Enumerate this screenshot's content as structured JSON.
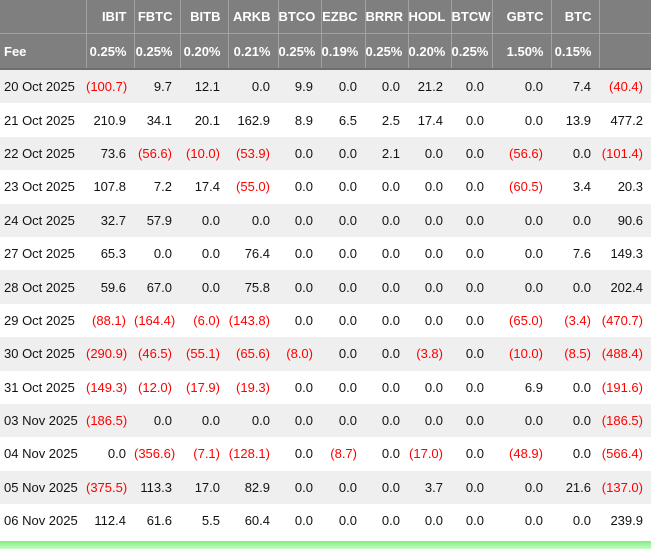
{
  "chart_data": {
    "type": "table",
    "description": "Bitcoin ETF daily flows table",
    "columns": [
      "",
      "IBIT",
      "FBTC",
      "BITB",
      "ARKB",
      "BTCO",
      "EZBC",
      "BRRR",
      "HODL",
      "BTCW",
      "GBTC",
      "BTC",
      ""
    ],
    "fee_row": {
      "label": "Fee",
      "values": [
        "0.25%",
        "0.25%",
        "0.20%",
        "0.21%",
        "0.25%",
        "0.19%",
        "0.25%",
        "0.20%",
        "0.25%",
        "1.50%",
        "0.15%",
        ""
      ]
    },
    "rows": [
      {
        "date": "20 Oct 2025",
        "values": [
          "(100.7)",
          "9.7",
          "12.1",
          "0.0",
          "9.9",
          "0.0",
          "0.0",
          "21.2",
          "0.0",
          "0.0",
          "7.4",
          "(40.4)"
        ]
      },
      {
        "date": "21 Oct 2025",
        "values": [
          "210.9",
          "34.1",
          "20.1",
          "162.9",
          "8.9",
          "6.5",
          "2.5",
          "17.4",
          "0.0",
          "0.0",
          "13.9",
          "477.2"
        ]
      },
      {
        "date": "22 Oct 2025",
        "values": [
          "73.6",
          "(56.6)",
          "(10.0)",
          "(53.9)",
          "0.0",
          "0.0",
          "2.1",
          "0.0",
          "0.0",
          "(56.6)",
          "0.0",
          "(101.4)"
        ]
      },
      {
        "date": "23 Oct 2025",
        "values": [
          "107.8",
          "7.2",
          "17.4",
          "(55.0)",
          "0.0",
          "0.0",
          "0.0",
          "0.0",
          "0.0",
          "(60.5)",
          "3.4",
          "20.3"
        ]
      },
      {
        "date": "24 Oct 2025",
        "values": [
          "32.7",
          "57.9",
          "0.0",
          "0.0",
          "0.0",
          "0.0",
          "0.0",
          "0.0",
          "0.0",
          "0.0",
          "0.0",
          "90.6"
        ]
      },
      {
        "date": "27 Oct 2025",
        "values": [
          "65.3",
          "0.0",
          "0.0",
          "76.4",
          "0.0",
          "0.0",
          "0.0",
          "0.0",
          "0.0",
          "0.0",
          "7.6",
          "149.3"
        ]
      },
      {
        "date": "28 Oct 2025",
        "values": [
          "59.6",
          "67.0",
          "0.0",
          "75.8",
          "0.0",
          "0.0",
          "0.0",
          "0.0",
          "0.0",
          "0.0",
          "0.0",
          "202.4"
        ]
      },
      {
        "date": "29 Oct 2025",
        "values": [
          "(88.1)",
          "(164.4)",
          "(6.0)",
          "(143.8)",
          "0.0",
          "0.0",
          "0.0",
          "0.0",
          "0.0",
          "(65.0)",
          "(3.4)",
          "(470.7)"
        ]
      },
      {
        "date": "30 Oct 2025",
        "values": [
          "(290.9)",
          "(46.5)",
          "(55.1)",
          "(65.6)",
          "(8.0)",
          "0.0",
          "0.0",
          "(3.8)",
          "0.0",
          "(10.0)",
          "(8.5)",
          "(488.4)"
        ]
      },
      {
        "date": "31 Oct 2025",
        "values": [
          "(149.3)",
          "(12.0)",
          "(17.9)",
          "(19.3)",
          "0.0",
          "0.0",
          "0.0",
          "0.0",
          "0.0",
          "6.9",
          "0.0",
          "(191.6)"
        ]
      },
      {
        "date": "03 Nov 2025",
        "values": [
          "(186.5)",
          "0.0",
          "0.0",
          "0.0",
          "0.0",
          "0.0",
          "0.0",
          "0.0",
          "0.0",
          "0.0",
          "0.0",
          "(186.5)"
        ]
      },
      {
        "date": "04 Nov 2025",
        "values": [
          "0.0",
          "(356.6)",
          "(7.1)",
          "(128.1)",
          "0.0",
          "(8.7)",
          "0.0",
          "(17.0)",
          "0.0",
          "(48.9)",
          "0.0",
          "(566.4)"
        ]
      },
      {
        "date": "05 Nov 2025",
        "values": [
          "(375.5)",
          "113.3",
          "17.0",
          "82.9",
          "0.0",
          "0.0",
          "0.0",
          "3.7",
          "0.0",
          "0.0",
          "21.6",
          "(137.0)"
        ]
      },
      {
        "date": "06 Nov 2025",
        "values": [
          "112.4",
          "61.6",
          "5.5",
          "60.4",
          "0.0",
          "0.0",
          "0.0",
          "0.0",
          "0.0",
          "0.0",
          "0.0",
          "239.9"
        ]
      }
    ]
  },
  "colors": {
    "header_bg": "#7f7f7f",
    "header_text": "#ffffff",
    "alt_row_bg": "#efefef",
    "negative_text": "#ff0000",
    "highlight_bar_green": "#a9f3a9"
  }
}
